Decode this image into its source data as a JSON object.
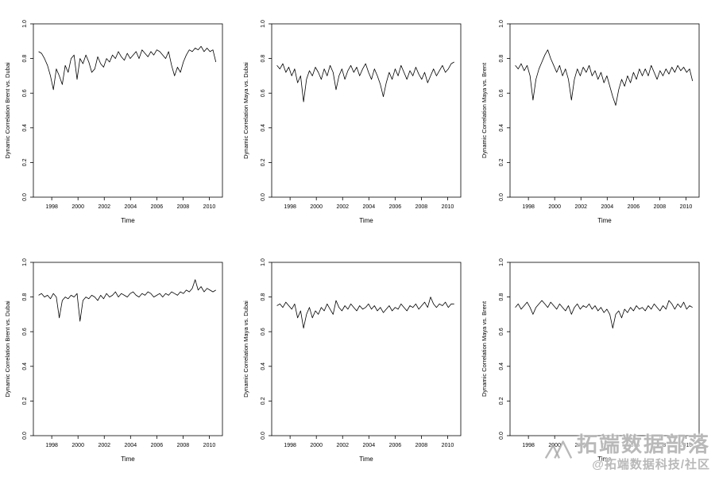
{
  "page": {
    "background": "#ffffff"
  },
  "watermark": {
    "title": "拓端数据部落",
    "handle": "@拓端数据科技/社区",
    "color": "#a8a8a8"
  },
  "chart_data": [
    {
      "type": "line",
      "title": "",
      "xlabel": "Time",
      "ylabel": "Dynamic Correlation Brent vs. Dubai",
      "xlim": [
        1996.6,
        2011.0
      ],
      "ylim": [
        0.0,
        1.0
      ],
      "xticks": [
        1998,
        2000,
        2002,
        2004,
        2006,
        2008,
        2010
      ],
      "yticks": [
        0.0,
        0.2,
        0.4,
        0.6,
        0.8,
        1.0
      ],
      "x_start": 1997.0,
      "x_step": 0.225,
      "line_color": "#000000",
      "values": [
        0.84,
        0.83,
        0.8,
        0.76,
        0.7,
        0.62,
        0.74,
        0.7,
        0.65,
        0.76,
        0.72,
        0.8,
        0.82,
        0.68,
        0.8,
        0.77,
        0.82,
        0.78,
        0.72,
        0.74,
        0.81,
        0.77,
        0.75,
        0.8,
        0.78,
        0.82,
        0.8,
        0.84,
        0.81,
        0.79,
        0.83,
        0.8,
        0.82,
        0.84,
        0.8,
        0.85,
        0.83,
        0.81,
        0.84,
        0.82,
        0.85,
        0.84,
        0.82,
        0.8,
        0.84,
        0.76,
        0.7,
        0.75,
        0.72,
        0.78,
        0.82,
        0.85,
        0.84,
        0.86,
        0.85,
        0.87,
        0.84,
        0.86,
        0.84,
        0.85,
        0.78
      ]
    },
    {
      "type": "line",
      "title": "",
      "xlabel": "Time",
      "ylabel": "Dynamic Correlation Maya vs. Dubai",
      "xlim": [
        1996.6,
        2011.0
      ],
      "ylim": [
        0.0,
        1.0
      ],
      "xticks": [
        1998,
        2000,
        2002,
        2004,
        2006,
        2008,
        2010
      ],
      "yticks": [
        0.0,
        0.2,
        0.4,
        0.6,
        0.8,
        1.0
      ],
      "x_start": 1997.0,
      "x_step": 0.225,
      "line_color": "#000000",
      "values": [
        0.76,
        0.74,
        0.77,
        0.72,
        0.75,
        0.7,
        0.74,
        0.66,
        0.7,
        0.55,
        0.68,
        0.73,
        0.7,
        0.75,
        0.72,
        0.68,
        0.74,
        0.7,
        0.76,
        0.72,
        0.62,
        0.7,
        0.74,
        0.68,
        0.73,
        0.76,
        0.72,
        0.75,
        0.7,
        0.74,
        0.77,
        0.72,
        0.68,
        0.74,
        0.7,
        0.65,
        0.58,
        0.66,
        0.72,
        0.68,
        0.74,
        0.7,
        0.76,
        0.72,
        0.68,
        0.73,
        0.7,
        0.75,
        0.71,
        0.68,
        0.72,
        0.66,
        0.7,
        0.74,
        0.7,
        0.73,
        0.76,
        0.72,
        0.74,
        0.77,
        0.78
      ]
    },
    {
      "type": "line",
      "title": "",
      "xlabel": "Time",
      "ylabel": "Dynamic Correlation Maya vs. Brent",
      "xlim": [
        1996.6,
        2011.0
      ],
      "ylim": [
        0.0,
        1.0
      ],
      "xticks": [
        1998,
        2000,
        2002,
        2004,
        2006,
        2008,
        2010
      ],
      "yticks": [
        0.0,
        0.2,
        0.4,
        0.6,
        0.8,
        1.0
      ],
      "x_start": 1997.0,
      "x_step": 0.225,
      "line_color": "#000000",
      "values": [
        0.76,
        0.74,
        0.77,
        0.73,
        0.76,
        0.7,
        0.56,
        0.68,
        0.74,
        0.78,
        0.82,
        0.85,
        0.8,
        0.76,
        0.72,
        0.76,
        0.7,
        0.74,
        0.68,
        0.56,
        0.68,
        0.74,
        0.7,
        0.75,
        0.72,
        0.76,
        0.7,
        0.73,
        0.68,
        0.72,
        0.66,
        0.7,
        0.64,
        0.58,
        0.53,
        0.62,
        0.68,
        0.64,
        0.7,
        0.66,
        0.72,
        0.68,
        0.74,
        0.7,
        0.74,
        0.7,
        0.76,
        0.72,
        0.68,
        0.73,
        0.7,
        0.74,
        0.71,
        0.75,
        0.72,
        0.76,
        0.73,
        0.75,
        0.72,
        0.74,
        0.67
      ]
    },
    {
      "type": "line",
      "title": "",
      "xlabel": "Time",
      "ylabel": "Dynamic Correlation Brent vs. Dubai",
      "xlim": [
        1996.6,
        2011.0
      ],
      "ylim": [
        0.0,
        1.0
      ],
      "xticks": [
        1998,
        2000,
        2002,
        2004,
        2006,
        2008,
        2010
      ],
      "yticks": [
        0.0,
        0.2,
        0.4,
        0.6,
        0.8,
        1.0
      ],
      "x_start": 1997.0,
      "x_step": 0.225,
      "line_color": "#000000",
      "values": [
        0.81,
        0.82,
        0.8,
        0.81,
        0.79,
        0.82,
        0.8,
        0.68,
        0.78,
        0.8,
        0.79,
        0.81,
        0.8,
        0.82,
        0.66,
        0.78,
        0.8,
        0.79,
        0.81,
        0.8,
        0.78,
        0.81,
        0.79,
        0.82,
        0.8,
        0.81,
        0.83,
        0.8,
        0.82,
        0.81,
        0.8,
        0.82,
        0.83,
        0.81,
        0.8,
        0.82,
        0.81,
        0.83,
        0.82,
        0.8,
        0.81,
        0.82,
        0.8,
        0.82,
        0.81,
        0.83,
        0.82,
        0.81,
        0.83,
        0.82,
        0.84,
        0.83,
        0.85,
        0.9,
        0.84,
        0.86,
        0.83,
        0.85,
        0.84,
        0.83,
        0.84
      ]
    },
    {
      "type": "line",
      "title": "",
      "xlabel": "Time",
      "ylabel": "Dynamic Correlation Maya vs. Dubai",
      "xlim": [
        1996.6,
        2011.0
      ],
      "ylim": [
        0.0,
        1.0
      ],
      "xticks": [
        1998,
        2000,
        2002,
        2004,
        2006,
        2008,
        2010
      ],
      "yticks": [
        0.0,
        0.2,
        0.4,
        0.6,
        0.8,
        1.0
      ],
      "x_start": 1997.0,
      "x_step": 0.225,
      "line_color": "#000000",
      "values": [
        0.75,
        0.76,
        0.74,
        0.77,
        0.75,
        0.73,
        0.76,
        0.68,
        0.72,
        0.62,
        0.7,
        0.74,
        0.68,
        0.72,
        0.7,
        0.74,
        0.72,
        0.76,
        0.73,
        0.7,
        0.78,
        0.74,
        0.72,
        0.75,
        0.73,
        0.76,
        0.74,
        0.72,
        0.75,
        0.73,
        0.74,
        0.76,
        0.73,
        0.75,
        0.72,
        0.74,
        0.71,
        0.73,
        0.75,
        0.72,
        0.74,
        0.73,
        0.76,
        0.74,
        0.72,
        0.75,
        0.74,
        0.76,
        0.73,
        0.75,
        0.77,
        0.74,
        0.8,
        0.76,
        0.74,
        0.76,
        0.75,
        0.77,
        0.74,
        0.76,
        0.76
      ]
    },
    {
      "type": "line",
      "title": "",
      "xlabel": "Time",
      "ylabel": "Dynamic Correlation Maya vs. Brent",
      "xlim": [
        1996.6,
        2011.0
      ],
      "ylim": [
        0.0,
        1.0
      ],
      "xticks": [
        1998,
        2000,
        2002,
        2004,
        2006,
        2008,
        2010
      ],
      "yticks": [
        0.0,
        0.2,
        0.4,
        0.6,
        0.8,
        1.0
      ],
      "x_start": 1997.0,
      "x_step": 0.225,
      "line_color": "#000000",
      "values": [
        0.74,
        0.76,
        0.73,
        0.75,
        0.77,
        0.74,
        0.7,
        0.74,
        0.76,
        0.78,
        0.76,
        0.74,
        0.77,
        0.75,
        0.73,
        0.76,
        0.74,
        0.72,
        0.75,
        0.7,
        0.74,
        0.76,
        0.73,
        0.75,
        0.74,
        0.76,
        0.73,
        0.75,
        0.72,
        0.74,
        0.71,
        0.73,
        0.7,
        0.62,
        0.7,
        0.72,
        0.68,
        0.73,
        0.71,
        0.74,
        0.72,
        0.75,
        0.73,
        0.74,
        0.72,
        0.75,
        0.73,
        0.76,
        0.74,
        0.72,
        0.75,
        0.73,
        0.78,
        0.76,
        0.73,
        0.76,
        0.74,
        0.77,
        0.73,
        0.75,
        0.74
      ]
    }
  ]
}
